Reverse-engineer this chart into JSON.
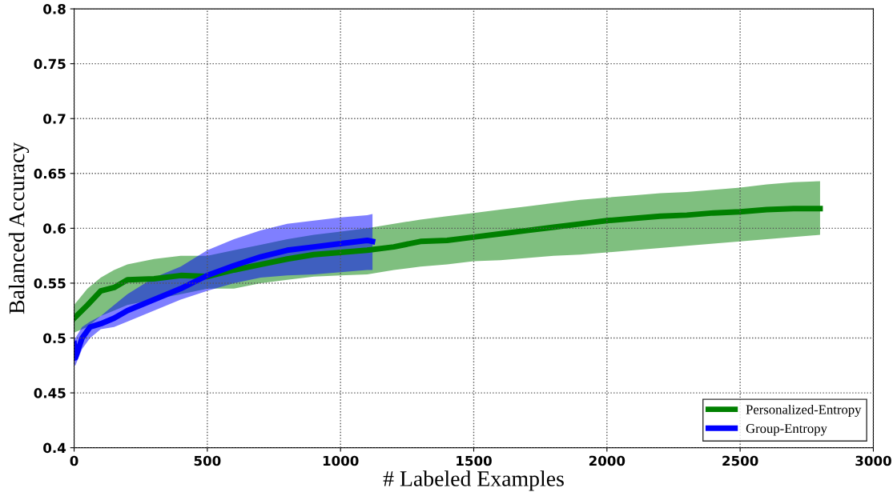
{
  "chart_data": {
    "type": "line",
    "xlabel": "# Labeled Examples",
    "ylabel": "Balanced Accuracy",
    "xlim": [
      0,
      3000
    ],
    "ylim": [
      0.4,
      0.8
    ],
    "xticks": [
      0,
      500,
      1000,
      1500,
      2000,
      2500,
      3000
    ],
    "yticks": [
      {
        "value": 0.4,
        "label": "0.4"
      },
      {
        "value": 0.45,
        "label": "0.45"
      },
      {
        "value": 0.5,
        "label": "0.5"
      },
      {
        "value": 0.55,
        "label": "0.55"
      },
      {
        "value": 0.6,
        "label": "0.6"
      },
      {
        "value": 0.65,
        "label": "0.65"
      },
      {
        "value": 0.7,
        "label": "0.7"
      },
      {
        "value": 0.75,
        "label": "0.75"
      },
      {
        "value": 0.8,
        "label": "0.8"
      }
    ],
    "grid": true,
    "legend": "bottom right",
    "series": [
      {
        "name": "Personalized-Entropy",
        "color": "#008000",
        "x": [
          0,
          50,
          100,
          150,
          200,
          300,
          400,
          500,
          600,
          700,
          800,
          900,
          1000,
          1100,
          1200,
          1300,
          1400,
          1500,
          1600,
          1700,
          1800,
          1900,
          2000,
          2100,
          2200,
          2300,
          2400,
          2500,
          2600,
          2700,
          2800
        ],
        "values": [
          0.518,
          0.53,
          0.543,
          0.546,
          0.553,
          0.554,
          0.557,
          0.556,
          0.562,
          0.567,
          0.572,
          0.576,
          0.578,
          0.58,
          0.583,
          0.588,
          0.589,
          0.592,
          0.595,
          0.598,
          0.601,
          0.604,
          0.607,
          0.609,
          0.611,
          0.612,
          0.614,
          0.615,
          0.617,
          0.618,
          0.618
        ],
        "lower": [
          0.505,
          0.51,
          0.52,
          0.525,
          0.53,
          0.535,
          0.54,
          0.545,
          0.545,
          0.55,
          0.553,
          0.556,
          0.557,
          0.558,
          0.562,
          0.565,
          0.567,
          0.57,
          0.571,
          0.573,
          0.575,
          0.576,
          0.578,
          0.58,
          0.582,
          0.584,
          0.586,
          0.588,
          0.59,
          0.592,
          0.594
        ],
        "upper": [
          0.53,
          0.545,
          0.555,
          0.562,
          0.567,
          0.572,
          0.575,
          0.575,
          0.58,
          0.585,
          0.59,
          0.594,
          0.597,
          0.6,
          0.604,
          0.608,
          0.611,
          0.614,
          0.617,
          0.62,
          0.623,
          0.626,
          0.628,
          0.63,
          0.632,
          0.633,
          0.635,
          0.637,
          0.64,
          0.642,
          0.643
        ]
      },
      {
        "name": "Group-Entropy",
        "color": "#0000ff",
        "x": [
          0,
          5,
          30,
          60,
          100,
          150,
          200,
          300,
          400,
          500,
          600,
          700,
          800,
          900,
          1000,
          1100,
          1120
        ],
        "values": [
          0.495,
          0.482,
          0.5,
          0.51,
          0.513,
          0.518,
          0.525,
          0.535,
          0.545,
          0.557,
          0.566,
          0.574,
          0.58,
          0.583,
          0.586,
          0.589,
          0.588
        ],
        "lower": [
          0.475,
          0.475,
          0.49,
          0.5,
          0.508,
          0.51,
          0.515,
          0.525,
          0.535,
          0.543,
          0.55,
          0.555,
          0.557,
          0.558,
          0.56,
          0.562,
          0.562
        ],
        "upper": [
          0.5,
          0.5,
          0.51,
          0.515,
          0.52,
          0.53,
          0.54,
          0.555,
          0.565,
          0.58,
          0.59,
          0.598,
          0.604,
          0.607,
          0.61,
          0.612,
          0.613
        ]
      }
    ]
  }
}
